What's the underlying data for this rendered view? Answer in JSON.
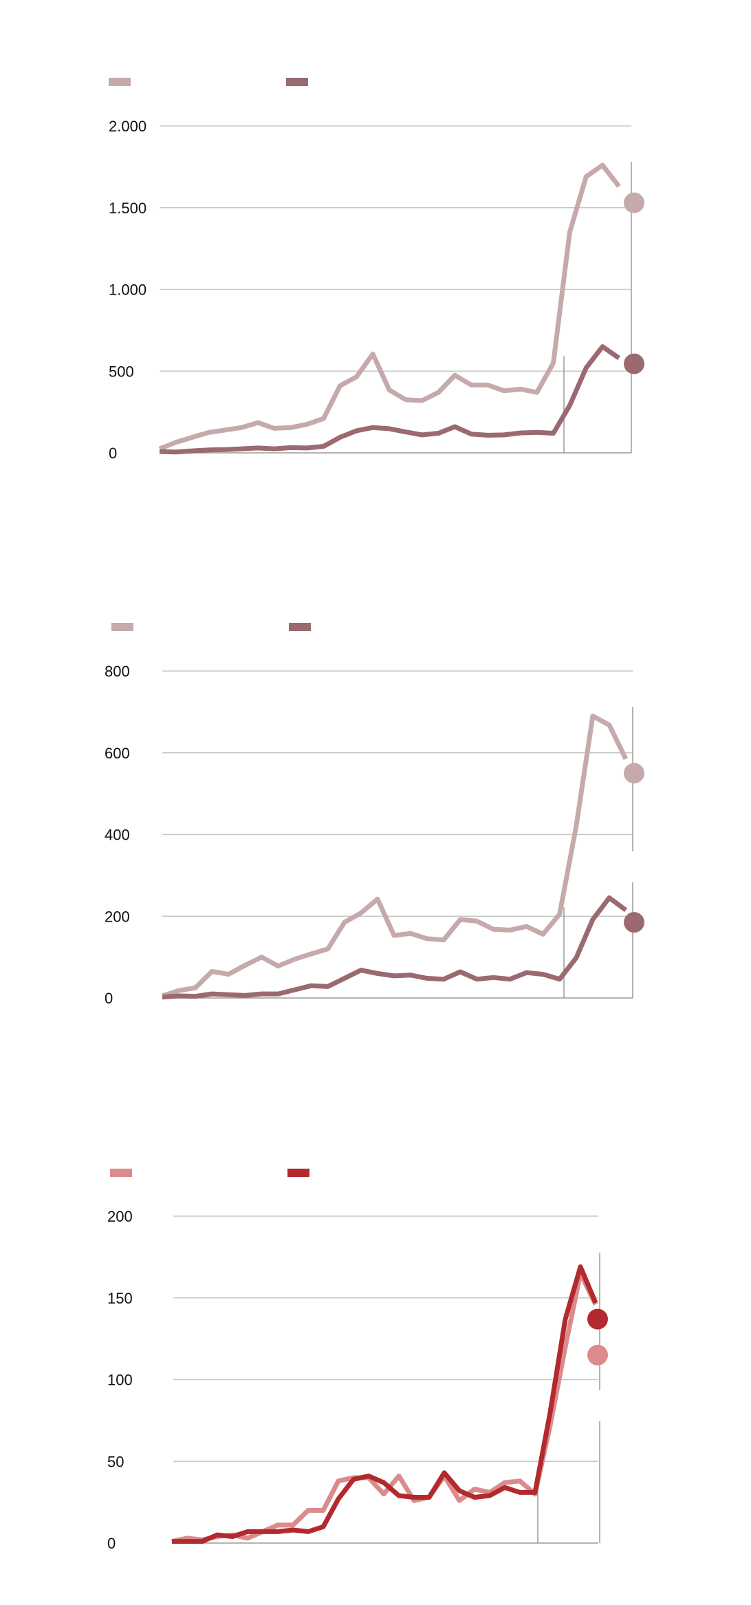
{
  "chart_data": [
    {
      "type": "line",
      "title": "",
      "xlabel": "",
      "ylabel": "",
      "ylim": [
        0,
        2000
      ],
      "yticks": [
        0,
        500,
        1000,
        1500,
        2000
      ],
      "ytick_labels": [
        "0",
        "500",
        "1.000",
        "1.500",
        "2.000"
      ],
      "grid": true,
      "legend": "top-left",
      "series": [
        {
          "color": "#c6aaab",
          "values": [
            25,
            65,
            95,
            125,
            140,
            155,
            185,
            150,
            155,
            175,
            210,
            410,
            465,
            605,
            385,
            325,
            320,
            370,
            475,
            415,
            415,
            380,
            390,
            370,
            550,
            1350,
            1690,
            1760,
            1630
          ],
          "end_value": 1530
        },
        {
          "color": "#9a6a70",
          "values": [
            8,
            5,
            12,
            18,
            20,
            25,
            30,
            25,
            32,
            30,
            40,
            95,
            135,
            155,
            148,
            128,
            110,
            120,
            160,
            115,
            108,
            110,
            122,
            125,
            120,
            290,
            520,
            650,
            580
          ],
          "end_value": 545
        }
      ]
    },
    {
      "type": "line",
      "title": "",
      "xlabel": "",
      "ylabel": "",
      "ylim": [
        0,
        800
      ],
      "yticks": [
        0,
        200,
        400,
        600,
        800
      ],
      "ytick_labels": [
        "0",
        "200",
        "400",
        "600",
        "800"
      ],
      "grid": true,
      "legend": "top-left",
      "series": [
        {
          "color": "#c6aaab",
          "values": [
            5,
            18,
            25,
            65,
            58,
            80,
            100,
            78,
            95,
            108,
            120,
            185,
            208,
            242,
            153,
            158,
            145,
            142,
            192,
            188,
            168,
            166,
            175,
            156,
            205,
            420,
            690,
            668,
            585
          ],
          "end_value": 550
        },
        {
          "color": "#9a6a70",
          "values": [
            2,
            5,
            4,
            10,
            8,
            6,
            10,
            10,
            20,
            30,
            28,
            48,
            68,
            60,
            54,
            56,
            48,
            46,
            64,
            46,
            50,
            46,
            62,
            58,
            46,
            98,
            192,
            245,
            215
          ],
          "end_value": 185
        }
      ]
    },
    {
      "type": "line",
      "title": "",
      "xlabel": "",
      "ylabel": "",
      "ylim": [
        0,
        200
      ],
      "yticks": [
        0,
        50,
        100,
        150,
        200
      ],
      "ytick_labels": [
        "0",
        "50",
        "100",
        "150",
        "200"
      ],
      "grid": true,
      "legend": "top-left",
      "series": [
        {
          "color": "#dc8b8c",
          "values": [
            1,
            3,
            2,
            4,
            5,
            3,
            7,
            11,
            11,
            20,
            20,
            38,
            40,
            40,
            30,
            41,
            26,
            28,
            41,
            26,
            33,
            31,
            37,
            38,
            30,
            72,
            120,
            165,
            146
          ],
          "end_value": 115
        },
        {
          "color": "#b22a2e",
          "values": [
            1,
            1,
            1,
            5,
            4,
            7,
            7,
            7,
            8,
            7,
            10,
            27,
            39,
            41,
            37,
            29,
            28,
            28,
            43,
            32,
            28,
            29,
            34,
            31,
            31,
            80,
            137,
            169,
            147
          ],
          "end_value": 137
        }
      ]
    }
  ]
}
